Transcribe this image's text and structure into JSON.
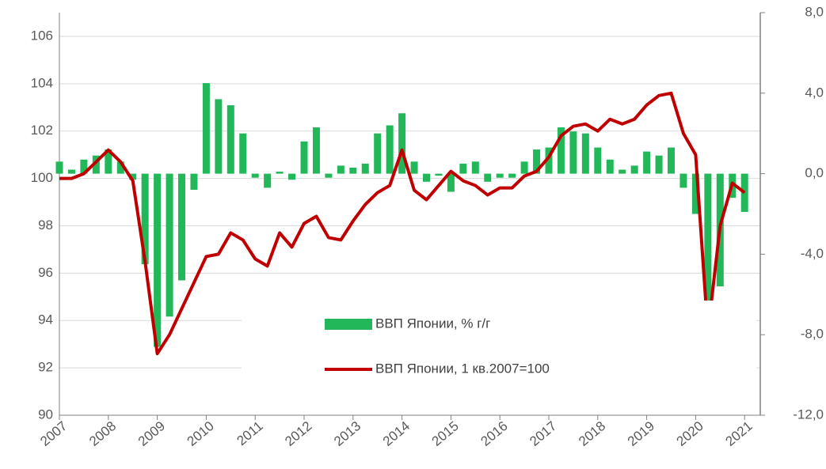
{
  "chart_data": {
    "type": "bar_line",
    "categories": [
      "2007",
      null,
      null,
      null,
      "2008",
      null,
      null,
      null,
      "2009",
      null,
      null,
      null,
      "2010",
      null,
      null,
      null,
      "2011",
      null,
      null,
      null,
      "2012",
      null,
      null,
      null,
      "2013",
      null,
      null,
      null,
      "2014",
      null,
      null,
      null,
      "2015",
      null,
      null,
      null,
      "2016",
      null,
      null,
      null,
      "2017",
      null,
      null,
      null,
      "2018",
      null,
      null,
      null,
      "2019",
      null,
      null,
      null,
      "2020",
      null,
      null,
      null,
      "2021"
    ],
    "series": [
      {
        "name": "ВВП Японии, % г/г",
        "type": "bar",
        "axis": "y2",
        "color": "#22b85a",
        "values": [
          0.6,
          0.2,
          0.7,
          0.9,
          1.2,
          0.6,
          -0.3,
          -4.5,
          -8.6,
          -7.1,
          -5.3,
          -0.8,
          4.5,
          3.7,
          3.4,
          2.0,
          -0.2,
          -0.7,
          0.1,
          -0.3,
          1.6,
          2.3,
          -0.2,
          0.4,
          0.3,
          0.5,
          2.0,
          2.4,
          3.0,
          0.6,
          -0.4,
          -0.1,
          -0.9,
          0.5,
          0.6,
          -0.4,
          -0.2,
          -0.2,
          0.6,
          1.2,
          1.3,
          2.3,
          2.1,
          2.0,
          1.3,
          0.7,
          0.2,
          0.4,
          1.1,
          0.9,
          1.3,
          -0.7,
          -2.0,
          -10.0,
          -5.6,
          -1.2,
          -1.9
        ]
      },
      {
        "name": "ВВП Японии, 1 кв.2007=100",
        "type": "line",
        "axis": "y",
        "color": "#c00000",
        "values": [
          100.0,
          100.0,
          100.2,
          100.7,
          101.2,
          100.7,
          99.9,
          96.5,
          92.6,
          93.4,
          94.5,
          95.6,
          96.7,
          96.8,
          97.7,
          97.4,
          96.6,
          96.3,
          97.7,
          97.1,
          98.1,
          98.4,
          97.5,
          97.4,
          98.2,
          98.9,
          99.4,
          99.7,
          101.2,
          99.5,
          99.1,
          99.7,
          100.3,
          99.9,
          99.7,
          99.3,
          99.6,
          99.6,
          100.1,
          100.3,
          100.9,
          101.8,
          102.2,
          102.3,
          102.0,
          102.5,
          102.3,
          102.5,
          103.1,
          103.5,
          103.6,
          101.9,
          101.0,
          93.5,
          98.0,
          99.8,
          99.4
        ]
      }
    ],
    "ylim": [
      90,
      107
    ],
    "yticks": [
      90,
      92,
      94,
      96,
      98,
      100,
      102,
      104,
      106
    ],
    "y2lim": [
      -12,
      8
    ],
    "y2ticks": [
      {
        "value": -12,
        "label": "-12,0"
      },
      {
        "value": -8,
        "label": "-8,0"
      },
      {
        "value": -4,
        "label": "-4,0"
      },
      {
        "value": 0,
        "label": "0,0"
      },
      {
        "value": 4,
        "label": "4,0"
      },
      {
        "value": 8,
        "label": "8,0"
      }
    ],
    "grid": true
  }
}
